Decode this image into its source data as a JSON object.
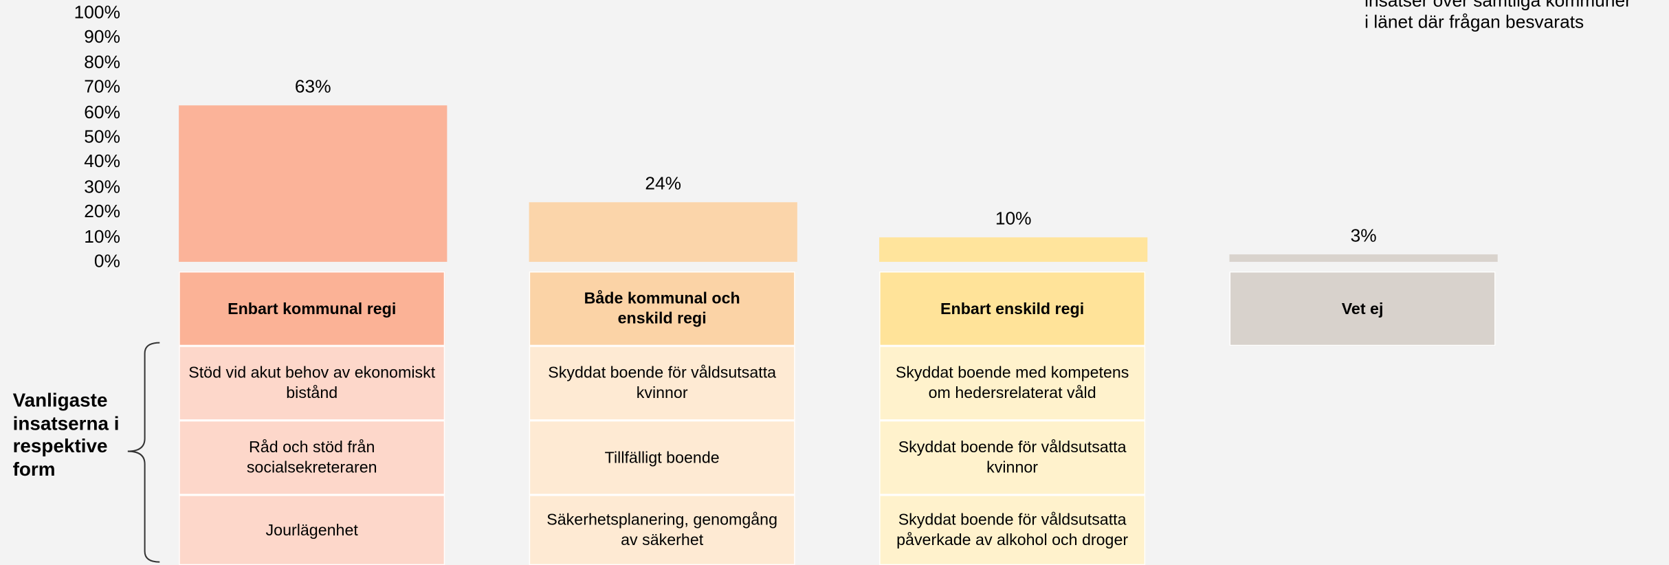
{
  "chart_data": {
    "type": "bar",
    "categories": [
      "Enbart kommunal regi",
      "Både kommunal och enskild regi",
      "Enbart enskild regi",
      "Vet ej"
    ],
    "values": [
      63,
      24,
      10,
      3
    ],
    "value_labels": [
      "63%",
      "24%",
      "10%",
      "3%"
    ],
    "colors": [
      "#fbb399",
      "#fbd5aa",
      "#ffe49c",
      "#d9d3cd"
    ],
    "header_colors": [
      "#fbb296",
      "#fbd3a6",
      "#ffe399",
      "#d8d2cc"
    ],
    "cell_colors": [
      "#fdd7ca",
      "#feead3",
      "#fff2cc",
      "#ece8e4"
    ],
    "ylim": [
      0,
      100
    ],
    "yticks": [
      {
        "value": 0,
        "label": "0%"
      },
      {
        "value": 10,
        "label": "10%"
      },
      {
        "value": 20,
        "label": "20%"
      },
      {
        "value": 30,
        "label": "30%"
      },
      {
        "value": 40,
        "label": "40%"
      },
      {
        "value": 50,
        "label": "50%"
      },
      {
        "value": 60,
        "label": "60%"
      },
      {
        "value": 70,
        "label": "70%"
      },
      {
        "value": 80,
        "label": "80%"
      },
      {
        "value": 90,
        "label": "90%"
      },
      {
        "value": 100,
        "label": "100%"
      }
    ],
    "row_label": "Vanligaste insatserna i respektive form",
    "annotations": [
      "insatser över samtliga kommuner",
      "i länet där frågan besvarats"
    ],
    "insatser": [
      [
        "Stöd vid akut behov av ekonomiskt bistånd",
        "Råd och stöd från socialsekreteraren",
        "Jourlägenhet"
      ],
      [
        "Skyddat boende för våldsutsatta kvinnor",
        "Tillfälligt boende",
        "Säkerhetsplanering, genomgång av säkerhet"
      ],
      [
        "Skyddat boende med kompetens om hedersrelaterat våld",
        "Skyddat boende för våldsutsatta kvinnor",
        "Skyddat boende för våldsutsatta påverkade av alkohol och droger"
      ],
      []
    ]
  }
}
